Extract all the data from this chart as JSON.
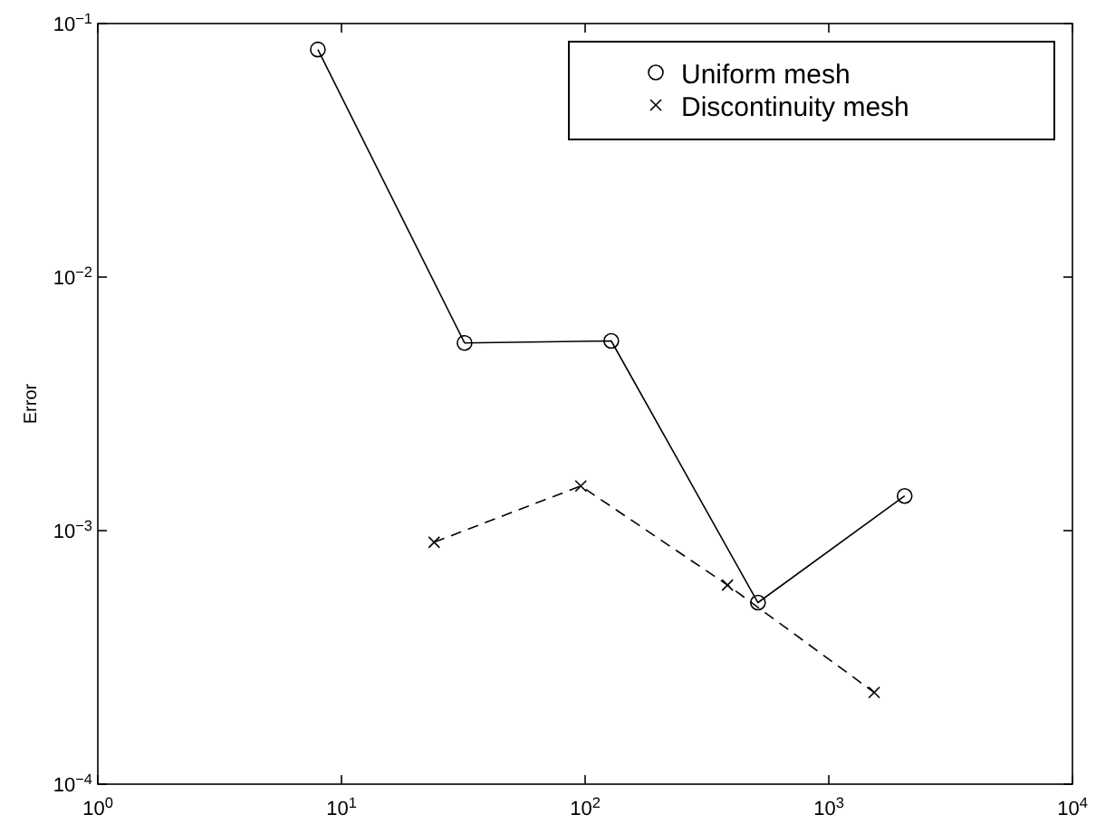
{
  "chart_data": {
    "type": "line",
    "ylabel": "Error",
    "log": "xy",
    "grid": false,
    "legend": "top right",
    "xlim": [
      1,
      10000
    ],
    "ylim": [
      0.0001,
      0.1
    ],
    "xticks": [
      {
        "value": 1,
        "label": "10$^{0}$"
      },
      {
        "value": 10,
        "label": "10$^{1}$"
      },
      {
        "value": 100,
        "label": "10$^{2}$"
      },
      {
        "value": 1000,
        "label": "10$^{3}$"
      },
      {
        "value": 10000,
        "label": "10$^{4}$"
      }
    ],
    "yticks": [
      {
        "value": 0.0001,
        "label": "10$^{−4}$"
      },
      {
        "value": 0.001,
        "label": "10$^{−3}$"
      },
      {
        "value": 0.01,
        "label": "10$^{−2}$"
      },
      {
        "value": 0.1,
        "label": "10$^{−1}$"
      }
    ],
    "series": [
      {
        "name": "Uniform mesh",
        "color": "#000000",
        "marker": "circle",
        "line_style": "solid",
        "x": [
          8,
          32,
          128,
          512,
          2048
        ],
        "values": [
          0.079,
          0.0055,
          0.0056,
          0.00052,
          0.00137
        ]
      },
      {
        "name": "Discontinuity mesh",
        "color": "#000000",
        "marker": "cross",
        "line_style": "dashed",
        "x": [
          24,
          96,
          384,
          1536
        ],
        "values": [
          0.0009,
          0.0015,
          0.00061,
          0.00023
        ]
      }
    ]
  }
}
